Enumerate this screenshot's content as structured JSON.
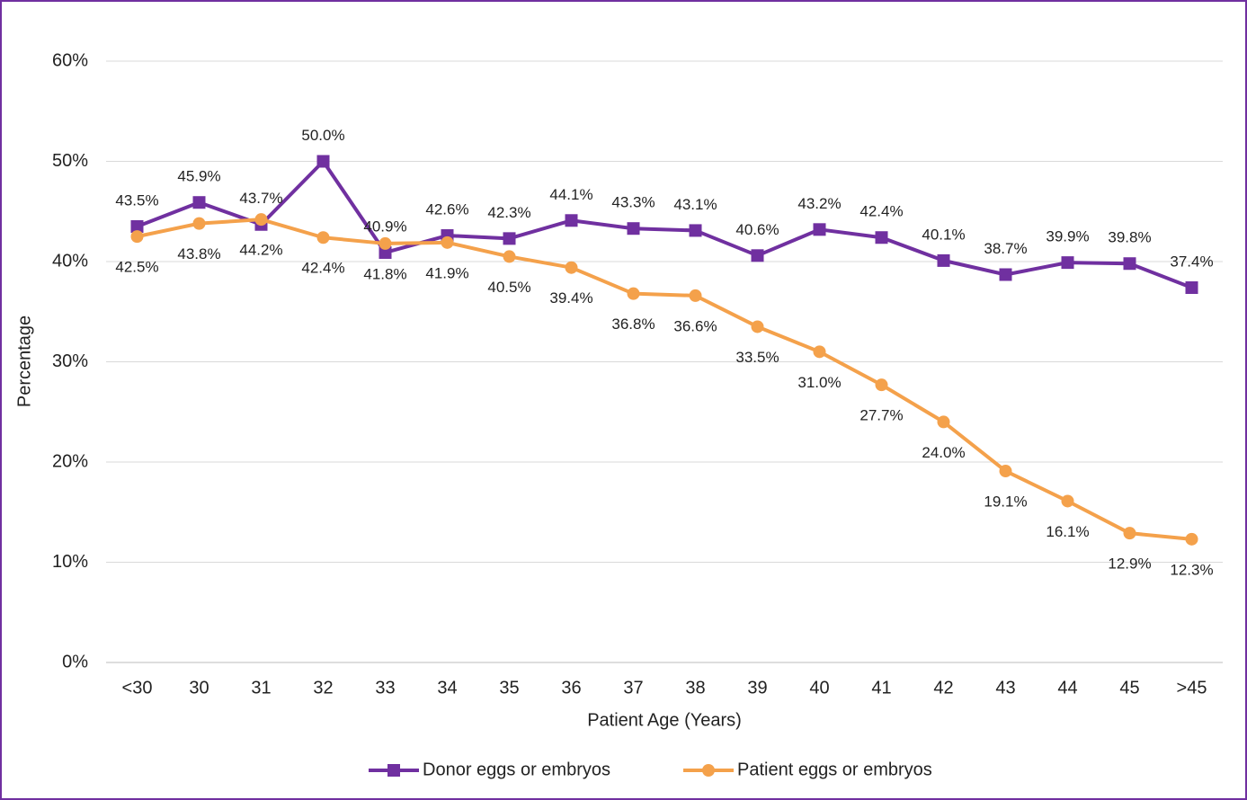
{
  "chart_data": {
    "type": "line",
    "x_label": "Patient Age (Years)",
    "y_label": "Percentage",
    "categories": [
      "<30",
      "30",
      "31",
      "32",
      "33",
      "34",
      "35",
      "36",
      "37",
      "38",
      "39",
      "40",
      "41",
      "42",
      "43",
      "44",
      "45",
      ">45"
    ],
    "ylim": [
      0,
      60
    ],
    "yticks": [
      {
        "value": 0,
        "label": "0%"
      },
      {
        "value": 10,
        "label": "10%"
      },
      {
        "value": 20,
        "label": "20%"
      },
      {
        "value": 30,
        "label": "30%"
      },
      {
        "value": 40,
        "label": "40%"
      },
      {
        "value": 50,
        "label": "50%"
      },
      {
        "value": 60,
        "label": "60%"
      }
    ],
    "grid": true,
    "legend": "bottom",
    "series": [
      {
        "name": "Donor eggs or embryos",
        "color": "#7030a0",
        "marker": "square",
        "values": [
          43.5,
          45.9,
          43.7,
          50.0,
          40.9,
          42.6,
          42.3,
          44.1,
          43.3,
          43.1,
          40.6,
          43.2,
          42.4,
          40.1,
          38.7,
          39.9,
          39.8,
          37.4
        ],
        "value_labels": [
          "43.5%",
          "45.9%",
          "43.7%",
          "50.0%",
          "40.9%",
          "42.6%",
          "42.3%",
          "44.1%",
          "43.3%",
          "43.1%",
          "40.6%",
          "43.2%",
          "42.4%",
          "40.1%",
          "38.7%",
          "39.9%",
          "39.8%",
          "37.4%"
        ]
      },
      {
        "name": "Patient eggs or embryos",
        "color": "#f4a14b",
        "marker": "circle",
        "values": [
          42.5,
          43.8,
          44.2,
          42.4,
          41.8,
          41.9,
          40.5,
          39.4,
          36.8,
          36.6,
          33.5,
          31.0,
          27.7,
          24.0,
          19.1,
          16.1,
          12.9,
          12.3
        ],
        "value_labels": [
          "42.5%",
          "43.8%",
          "44.2%",
          "42.4%",
          "41.8%",
          "41.9%",
          "40.5%",
          "39.4%",
          "36.8%",
          "36.6%",
          "33.5%",
          "31.0%",
          "27.7%",
          "24.0%",
          "19.1%",
          "16.1%",
          "12.9%",
          "12.3%"
        ]
      }
    ]
  }
}
